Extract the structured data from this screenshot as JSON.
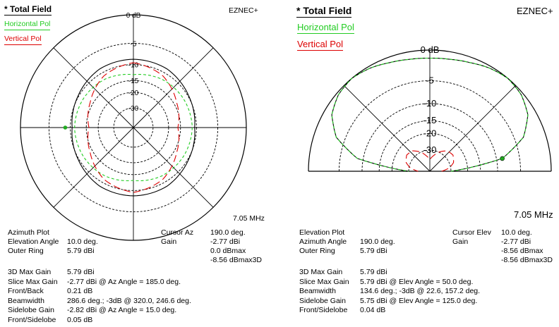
{
  "colors": {
    "total": "#000000",
    "horizontal": "#22cc22",
    "vertical": "#dd0000",
    "grid": "#000000",
    "marker": "#22aa22"
  },
  "left_panel": {
    "title": "* Total Field",
    "brand": "EZNEC+",
    "legend": {
      "horizontal": "Horizontal Pol",
      "vertical": "Vertical Pol"
    },
    "frequency": "7.05 MHz",
    "info": [
      {
        "k": "Azimuth Plot",
        "v": "",
        "k2": "Cursor Az",
        "v2": "190.0 deg."
      },
      {
        "k": "Elevation Angle",
        "v": "10.0 deg.",
        "k2": "Gain",
        "v2": "-2.77 dBi"
      },
      {
        "k": "Outer Ring",
        "v": "5.79 dBi",
        "k2": "",
        "v2": "0.0 dBmax"
      },
      {
        "k": "",
        "v": "",
        "k2": "",
        "v2": "-8.56 dBmax3D"
      }
    ],
    "stats": [
      {
        "k": "3D Max Gain",
        "v": "5.79 dBi"
      },
      {
        "k": "Slice Max Gain",
        "v": "-2.77 dBi @ Az Angle = 185.0 deg."
      },
      {
        "k": "Front/Back",
        "v": "0.21 dB"
      },
      {
        "k": "Beamwidth",
        "v": "286.6 deg.; -3dB @ 320.0, 246.6 deg."
      },
      {
        "k": "Sidelobe Gain",
        "v": "-2.82 dBi @ Az Angle = 15.0 deg."
      },
      {
        "k": "Front/Sidelobe",
        "v": "0.05 dB"
      }
    ]
  },
  "right_panel": {
    "title": "* Total Field",
    "brand": "EZNEC+",
    "legend": {
      "horizontal": "Horizontal Pol",
      "vertical": "Vertical Pol"
    },
    "frequency": "7.05 MHz",
    "info": [
      {
        "k": "Elevation Plot",
        "v": "",
        "k2": "Cursor Elev",
        "v2": "10.0 deg."
      },
      {
        "k": "Azimuth Angle",
        "v": "190.0 deg.",
        "k2": "Gain",
        "v2": "-2.77 dBi"
      },
      {
        "k": "Outer Ring",
        "v": "5.79 dBi",
        "k2": "",
        "v2": "-8.56 dBmax"
      },
      {
        "k": "",
        "v": "",
        "k2": "",
        "v2": "-8.56 dBmax3D"
      }
    ],
    "stats": [
      {
        "k": "3D Max Gain",
        "v": "5.79 dBi"
      },
      {
        "k": "Slice Max Gain",
        "v": "5.79 dBi @ Elev Angle = 50.0 deg."
      },
      {
        "k": "Beamwidth",
        "v": "134.6 deg.; -3dB @ 22.6, 157.2 deg."
      },
      {
        "k": "Sidelobe Gain",
        "v": "5.75 dBi @ Elev Angle = 125.0 deg."
      },
      {
        "k": "Front/Sidelobe",
        "v": "0.04 dB"
      }
    ]
  },
  "chart_data": [
    {
      "type": "polar",
      "plot": "azimuth",
      "ring_labels": [
        "0 dB",
        "-5",
        "-10",
        "-15",
        "-20",
        "-30"
      ],
      "ring_values_db": [
        0,
        -5,
        -10,
        -15,
        -20,
        -30
      ],
      "spoke_angles_deg": [
        0,
        45,
        90,
        135,
        180,
        225,
        270,
        315
      ],
      "series": [
        {
          "name": "Total Field",
          "style": "solid",
          "points_az_db": [
            [
              0,
              -8.6
            ],
            [
              30,
              -8.8
            ],
            [
              60,
              -9.8
            ],
            [
              90,
              -10.5
            ],
            [
              120,
              -9.8
            ],
            [
              150,
              -8.8
            ],
            [
              180,
              -8.6
            ],
            [
              210,
              -8.8
            ],
            [
              240,
              -9.8
            ],
            [
              270,
              -10.5
            ],
            [
              300,
              -9.8
            ],
            [
              330,
              -8.8
            ]
          ]
        },
        {
          "name": "Horizontal Pol",
          "style": "dashed",
          "points_az_db": [
            [
              0,
              -13
            ],
            [
              30,
              -12
            ],
            [
              60,
              -11.5
            ],
            [
              90,
              -11.2
            ],
            [
              120,
              -11.5
            ],
            [
              150,
              -12
            ],
            [
              180,
              -13
            ],
            [
              210,
              -12
            ],
            [
              240,
              -11.5
            ],
            [
              270,
              -11.2
            ],
            [
              300,
              -11.5
            ],
            [
              330,
              -12
            ]
          ]
        },
        {
          "name": "Vertical Pol",
          "style": "dashed",
          "points_az_db": [
            [
              0,
              -9.5
            ],
            [
              30,
              -11
            ],
            [
              60,
              -14
            ],
            [
              90,
              -16
            ],
            [
              120,
              -14
            ],
            [
              150,
              -11
            ],
            [
              180,
              -9.5
            ],
            [
              210,
              -11
            ],
            [
              240,
              -14
            ],
            [
              270,
              -16
            ],
            [
              300,
              -14
            ],
            [
              330,
              -11
            ]
          ]
        }
      ],
      "cursor_az_deg": 190
    },
    {
      "type": "polar",
      "plot": "elevation",
      "ring_labels": [
        "0 dB",
        "-5",
        "-10",
        "-15",
        "-20",
        "-30"
      ],
      "ring_values_db": [
        0,
        -5,
        -10,
        -15,
        -20,
        -30
      ],
      "spoke_angles_deg": [
        0,
        45,
        90,
        135,
        180
      ],
      "series": [
        {
          "name": "Total Field",
          "style": "solid",
          "points_elev_db": [
            [
              0,
              -30
            ],
            [
              10,
              -8.6
            ],
            [
              20,
              -3.4
            ],
            [
              30,
              -1.2
            ],
            [
              40,
              -0.3
            ],
            [
              50,
              0
            ],
            [
              60,
              -0.3
            ],
            [
              70,
              -0.8
            ],
            [
              80,
              -1.1
            ],
            [
              90,
              -1.2
            ],
            [
              100,
              -1.1
            ],
            [
              110,
              -0.8
            ],
            [
              120,
              -0.3
            ],
            [
              130,
              0
            ],
            [
              140,
              -0.3
            ],
            [
              150,
              -1.2
            ],
            [
              160,
              -3.4
            ],
            [
              170,
              -8.6
            ],
            [
              180,
              -30
            ]
          ]
        },
        {
          "name": "Horizontal Pol",
          "style": "dashed",
          "points_elev_db": [
            [
              0,
              -30
            ],
            [
              10,
              -8.6
            ],
            [
              20,
              -3.4
            ],
            [
              30,
              -1.2
            ],
            [
              40,
              -0.3
            ],
            [
              50,
              0
            ],
            [
              60,
              -0.3
            ],
            [
              70,
              -0.8
            ],
            [
              80,
              -1.1
            ],
            [
              90,
              -1.2
            ],
            [
              100,
              -1.1
            ],
            [
              110,
              -0.8
            ],
            [
              120,
              -0.3
            ],
            [
              130,
              0
            ],
            [
              140,
              -0.3
            ],
            [
              150,
              -1.2
            ],
            [
              160,
              -3.4
            ],
            [
              170,
              -8.6
            ],
            [
              180,
              -30
            ]
          ]
        },
        {
          "name": "Vertical Pol",
          "style": "dashed",
          "points_elev_db": [
            [
              0,
              -40
            ],
            [
              10,
              -31
            ],
            [
              20,
              -27
            ],
            [
              35,
              -25
            ],
            [
              50,
              -26
            ],
            [
              65,
              -30
            ],
            [
              80,
              -36
            ],
            [
              90,
              -40
            ],
            [
              100,
              -36
            ],
            [
              115,
              -30
            ],
            [
              130,
              -26
            ],
            [
              145,
              -25
            ],
            [
              160,
              -27
            ],
            [
              170,
              -31
            ],
            [
              180,
              -40
            ]
          ]
        }
      ],
      "cursor_elev_deg": 10
    }
  ]
}
